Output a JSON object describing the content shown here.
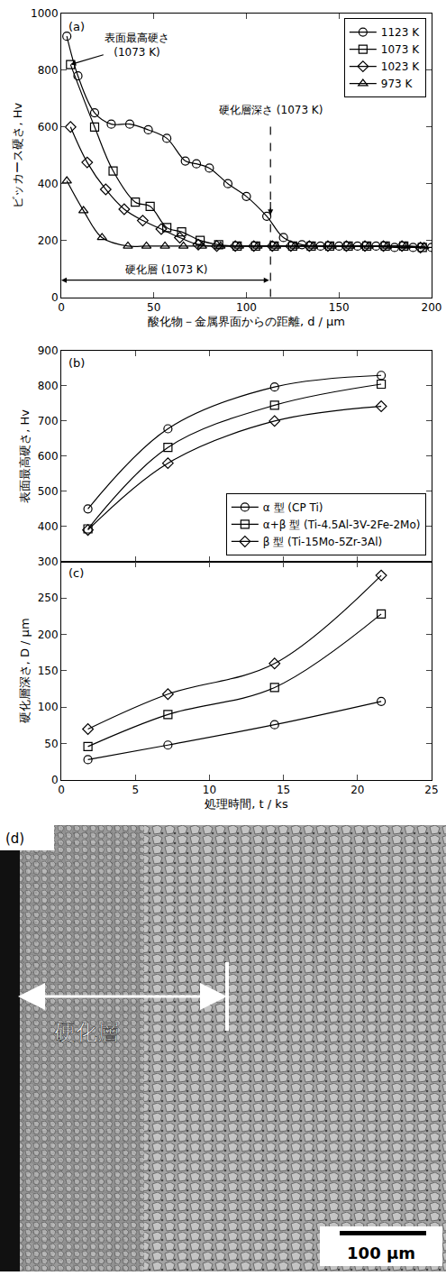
{
  "chart_data": [
    {
      "type": "scatter",
      "label": "(a)",
      "x_label": "酸化物－金属界面からの距離, d / μm",
      "y_label": "ビッカース硬さ, Hv",
      "xlim": [
        0,
        200
      ],
      "xticks": [
        0,
        50,
        100,
        150,
        200
      ],
      "ylim": [
        0,
        1000
      ],
      "yticks": [
        0,
        200,
        400,
        600,
        800,
        1000
      ],
      "grid": false,
      "legend": "upper right",
      "series": [
        {
          "name": "1123 K",
          "color": "#000000",
          "marker": "circle-open",
          "line_style": "solid",
          "x": [
            3,
            9,
            18,
            27,
            37,
            47,
            57,
            67,
            73,
            80,
            90,
            100,
            111,
            120,
            130,
            140,
            150,
            160,
            170,
            180,
            190,
            200
          ],
          "values": [
            920,
            780,
            650,
            610,
            610,
            590,
            560,
            480,
            470,
            455,
            400,
            355,
            285,
            210,
            185,
            180,
            180,
            180,
            180,
            175,
            175,
            175
          ]
        },
        {
          "name": "1073 K",
          "color": "#000000",
          "marker": "square-open",
          "line_style": "solid",
          "x": [
            5,
            18,
            28,
            40,
            48,
            57,
            65,
            75,
            85,
            95,
            105,
            115,
            125,
            135,
            145,
            155,
            165,
            175,
            185,
            195
          ],
          "values": [
            820,
            600,
            445,
            335,
            320,
            245,
            230,
            200,
            185,
            180,
            180,
            180,
            180,
            180,
            180,
            180,
            180,
            180,
            180,
            175
          ]
        },
        {
          "name": "1023 K",
          "color": "#000000",
          "marker": "diamond-open",
          "line_style": "solid",
          "x": [
            5,
            14,
            24,
            34,
            44,
            54,
            64,
            74,
            84,
            94,
            104,
            114,
            124,
            134,
            144,
            154,
            164,
            174,
            184,
            194
          ],
          "values": [
            600,
            475,
            380,
            310,
            270,
            240,
            210,
            185,
            180,
            180,
            180,
            180,
            180,
            180,
            180,
            180,
            180,
            180,
            180,
            175
          ]
        },
        {
          "name": "973 K",
          "color": "#000000",
          "marker": "triangle-up-open",
          "line_style": "solid",
          "x": [
            3,
            12,
            22,
            36,
            46,
            56,
            66,
            76,
            86,
            96,
            106,
            116,
            126,
            136,
            146,
            156,
            166,
            176,
            186,
            196
          ],
          "values": [
            410,
            305,
            210,
            180,
            180,
            180,
            180,
            180,
            180,
            180,
            180,
            180,
            180,
            180,
            180,
            180,
            180,
            180,
            180,
            178
          ]
        }
      ],
      "annotations": [
        {
          "text": "表面最高硬さ\n(1073 K)",
          "x": 5,
          "y": 820
        },
        {
          "text": "硬化層深さ (1073 K)",
          "x": 113
        },
        {
          "text": "硬化層 (1073 K)",
          "x": [
            0,
            113
          ]
        }
      ]
    },
    {
      "type": "scatter",
      "label": "(b)",
      "y_label": "表面最高硬さ, Hv",
      "xlim": [
        0,
        25
      ],
      "xticks": [
        0,
        5,
        10,
        15,
        20,
        25
      ],
      "ylim": [
        300,
        900
      ],
      "yticks": [
        300,
        400,
        500,
        600,
        700,
        800,
        900
      ],
      "grid": false,
      "legend": "lower right",
      "tick_labels": "y",
      "series": [
        {
          "name": "α 型 (CP Ti)",
          "color": "#000000",
          "marker": "circle-open",
          "line_style": "solid",
          "x": [
            1.8,
            7.2,
            14.4,
            21.6
          ],
          "values": [
            450,
            678,
            797,
            830
          ]
        },
        {
          "name": "α+β 型 (Ti-4.5Al-3V-2Fe-2Mo)",
          "color": "#000000",
          "marker": "square-open",
          "line_style": "solid",
          "x": [
            1.8,
            7.2,
            14.4,
            21.6
          ],
          "values": [
            393,
            625,
            745,
            805
          ]
        },
        {
          "name": "β 型 (Ti-15Mo-5Zr-3Al)",
          "color": "#000000",
          "marker": "diamond-open",
          "line_style": "solid",
          "x": [
            1.8,
            7.2,
            14.4,
            21.6
          ],
          "values": [
            390,
            580,
            700,
            742
          ]
        }
      ]
    },
    {
      "type": "scatter",
      "label": "(c)",
      "x_label": "処理時間, t / ks",
      "y_label": "硬化層深さ, D / μm",
      "xlim": [
        0,
        25
      ],
      "xticks": [
        0,
        5,
        10,
        15,
        20,
        25
      ],
      "ylim": [
        0,
        300
      ],
      "yticks": [
        0,
        50,
        100,
        150,
        200,
        250
      ],
      "grid": false,
      "series": [
        {
          "name": "α 型 (CP Ti)",
          "color": "#000000",
          "marker": "circle-open",
          "line_style": "solid",
          "x": [
            1.8,
            7.2,
            14.4,
            21.6
          ],
          "values": [
            28,
            48,
            76,
            108
          ]
        },
        {
          "name": "α+β 型 (Ti-4.5Al-3V-2Fe-2Mo)",
          "color": "#000000",
          "marker": "square-open",
          "line_style": "solid",
          "x": [
            1.8,
            7.2,
            14.4,
            21.6
          ],
          "values": [
            46,
            90,
            127,
            228
          ]
        },
        {
          "name": "β 型 (Ti-15Mo-5Zr-3Al)",
          "color": "#000000",
          "marker": "diamond-open",
          "line_style": "solid",
          "x": [
            1.8,
            7.2,
            14.4,
            21.6
          ],
          "values": [
            70,
            118,
            160,
            281
          ]
        }
      ]
    }
  ],
  "image_panel": {
    "label": "(d)",
    "annotation": "硬化層",
    "scale_bar": "100 μm"
  }
}
